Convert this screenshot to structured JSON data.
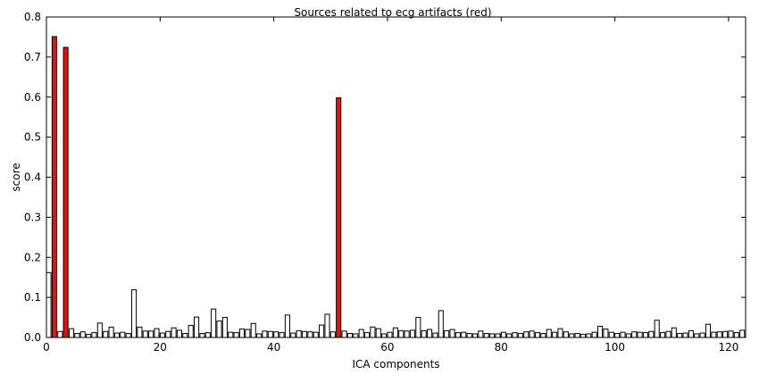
{
  "chart_data": {
    "type": "bar",
    "title": "Sources related to ecg artifacts (red)",
    "xlabel": "ICA components",
    "ylabel": "score",
    "xlim": [
      0,
      123
    ],
    "ylim": [
      0,
      0.8
    ],
    "xticks": [
      "0",
      "20",
      "40",
      "60",
      "80",
      "100",
      "120"
    ],
    "yticks": [
      "0.0",
      "0.1",
      "0.2",
      "0.3",
      "0.4",
      "0.5",
      "0.6",
      "0.7",
      "0.8"
    ],
    "grid": false,
    "colors": {
      "normal": "#ffffff",
      "highlight": "#e8120c",
      "edge": "#000000"
    },
    "highlighted": [
      1,
      3,
      51
    ],
    "values": [
      0.162,
      0.751,
      0.015,
      0.724,
      0.022,
      0.01,
      0.014,
      0.008,
      0.012,
      0.036,
      0.015,
      0.026,
      0.011,
      0.013,
      0.01,
      0.119,
      0.026,
      0.016,
      0.016,
      0.022,
      0.011,
      0.015,
      0.024,
      0.018,
      0.01,
      0.03,
      0.051,
      0.01,
      0.012,
      0.071,
      0.041,
      0.05,
      0.013,
      0.012,
      0.021,
      0.02,
      0.035,
      0.009,
      0.016,
      0.015,
      0.014,
      0.012,
      0.056,
      0.011,
      0.017,
      0.015,
      0.014,
      0.013,
      0.031,
      0.058,
      0.014,
      0.598,
      0.016,
      0.01,
      0.009,
      0.02,
      0.012,
      0.026,
      0.022,
      0.009,
      0.013,
      0.024,
      0.017,
      0.016,
      0.018,
      0.05,
      0.017,
      0.02,
      0.011,
      0.067,
      0.017,
      0.02,
      0.012,
      0.013,
      0.01,
      0.009,
      0.016,
      0.01,
      0.009,
      0.009,
      0.013,
      0.009,
      0.012,
      0.01,
      0.014,
      0.016,
      0.012,
      0.01,
      0.02,
      0.013,
      0.022,
      0.014,
      0.009,
      0.01,
      0.008,
      0.009,
      0.013,
      0.028,
      0.021,
      0.013,
      0.01,
      0.013,
      0.009,
      0.014,
      0.013,
      0.012,
      0.015,
      0.043,
      0.012,
      0.015,
      0.024,
      0.01,
      0.011,
      0.017,
      0.009,
      0.011,
      0.033,
      0.013,
      0.014,
      0.015,
      0.016,
      0.012,
      0.018
    ]
  }
}
